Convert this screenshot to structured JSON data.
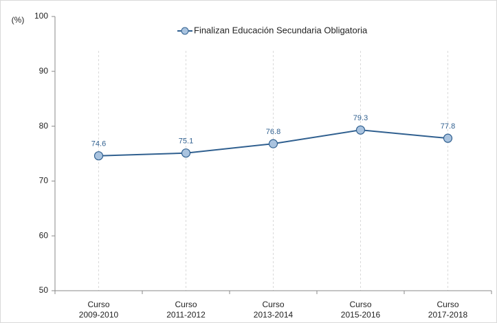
{
  "chart_data": {
    "type": "line",
    "y_label": "(%)",
    "categories": [
      "Curso\n2009-2010",
      "Curso\n2011-2012",
      "Curso\n2013-2014",
      "Curso\n2015-2016",
      "Curso\n2017-2018"
    ],
    "series": [
      {
        "name": "Finalizan Educación Secundaria Obligatoria",
        "color": "#2f5f8f",
        "marker_fill": "#a9c3df",
        "values": [
          74.6,
          75.1,
          76.8,
          79.3,
          77.8
        ]
      }
    ],
    "ylim": [
      50,
      100
    ],
    "yticks": [
      50,
      60,
      70,
      80,
      90,
      100
    ],
    "legend": "top",
    "grid_x": true
  }
}
